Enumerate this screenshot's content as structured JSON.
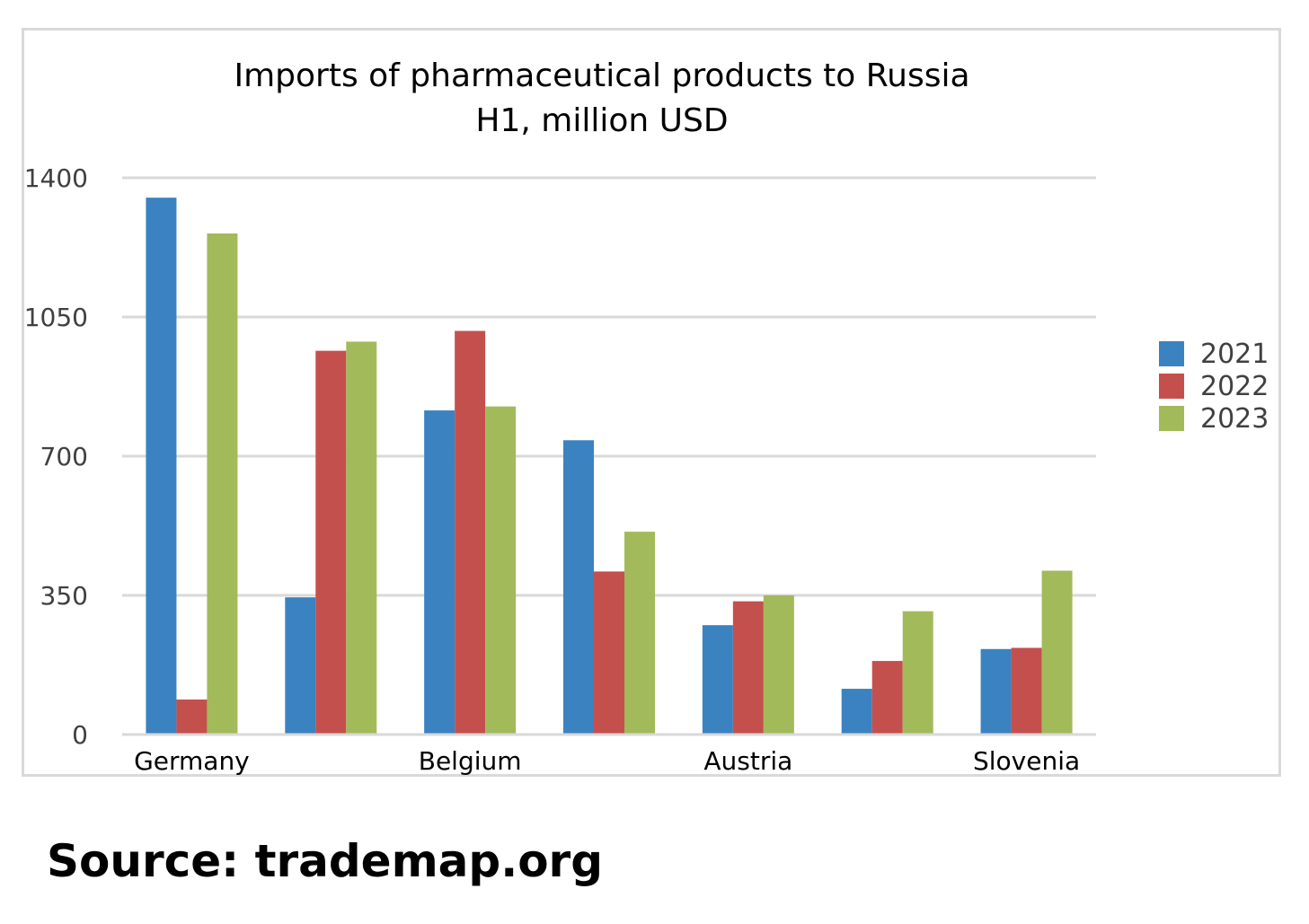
{
  "chart_data": {
    "type": "bar",
    "title": "Imports of pharmaceutical products to Russia",
    "subtitle": "H1, million USD",
    "categories": [
      "Germany",
      "",
      "Belgium",
      "",
      "Austria",
      "",
      "Slovenia"
    ],
    "series": [
      {
        "name": "2021",
        "color": "#3b82c0",
        "values": [
          1350,
          345,
          815,
          740,
          275,
          115,
          215
        ]
      },
      {
        "name": "2022",
        "color": "#c4504d",
        "values": [
          88,
          965,
          1015,
          410,
          335,
          185,
          218
        ]
      },
      {
        "name": "2023",
        "color": "#a2ba5a",
        "values": [
          1260,
          988,
          825,
          510,
          350,
          310,
          412
        ]
      }
    ],
    "y_ticks": [
      0,
      350,
      700,
      1050,
      1400
    ],
    "ylim": [
      0,
      1400
    ],
    "grid": true,
    "legend_position": "right"
  },
  "source": "Source: trademap.org"
}
